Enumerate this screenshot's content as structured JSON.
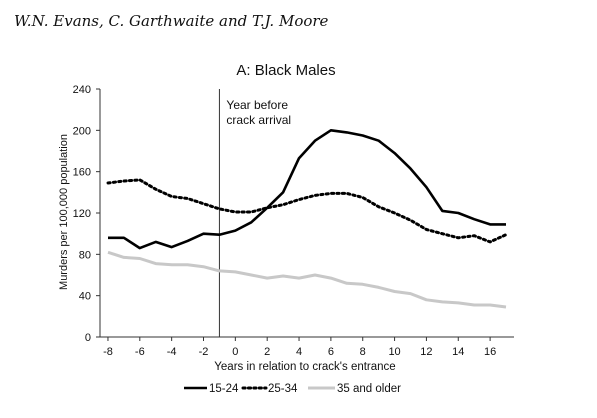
{
  "header": {
    "authors": "W.N. Evans, C. Garthwaite and T.J. Moore"
  },
  "chart_data": {
    "type": "line",
    "title": "A: Black Males",
    "xlabel": "Years in relation to crack's entrance",
    "ylabel": "Murders per 100,000 population",
    "xlim": [
      -8.5,
      17.5
    ],
    "ylim": [
      0,
      240
    ],
    "x_ticks": [
      -8,
      -6,
      -4,
      -2,
      0,
      2,
      4,
      6,
      8,
      10,
      12,
      14,
      16
    ],
    "y_ticks": [
      0,
      40,
      80,
      120,
      160,
      200,
      240
    ],
    "grid": false,
    "legend_position": "bottom",
    "annotation": {
      "x": -1,
      "lines": [
        "Year before",
        "crack arrival"
      ]
    },
    "x": [
      -8,
      -7,
      -6,
      -5,
      -4,
      -3,
      -2,
      -1,
      0,
      1,
      2,
      3,
      4,
      5,
      6,
      7,
      8,
      9,
      10,
      11,
      12,
      13,
      14,
      15,
      16,
      17
    ],
    "series": [
      {
        "name": "15-24",
        "style": "solid",
        "color": "#000000",
        "values": [
          96,
          96,
          86,
          92,
          87,
          93,
          100,
          99,
          103,
          111,
          125,
          140,
          173,
          190,
          200,
          198,
          195,
          190,
          178,
          163,
          145,
          122,
          120,
          114,
          109,
          109
        ]
      },
      {
        "name": "25-34",
        "style": "dotted",
        "color": "#000000",
        "values": [
          149,
          151,
          152,
          143,
          136,
          134,
          129,
          124,
          121,
          121,
          125,
          128,
          133,
          137,
          139,
          139,
          135,
          126,
          120,
          113,
          104,
          100,
          96,
          98,
          92,
          99
        ]
      },
      {
        "name": "35 and older",
        "style": "solid",
        "color": "#c8c8c8",
        "values": [
          82,
          77,
          76,
          71,
          70,
          70,
          68,
          64,
          63,
          60,
          57,
          59,
          57,
          60,
          57,
          52,
          51,
          48,
          44,
          42,
          36,
          34,
          33,
          31,
          31,
          29
        ]
      }
    ]
  }
}
